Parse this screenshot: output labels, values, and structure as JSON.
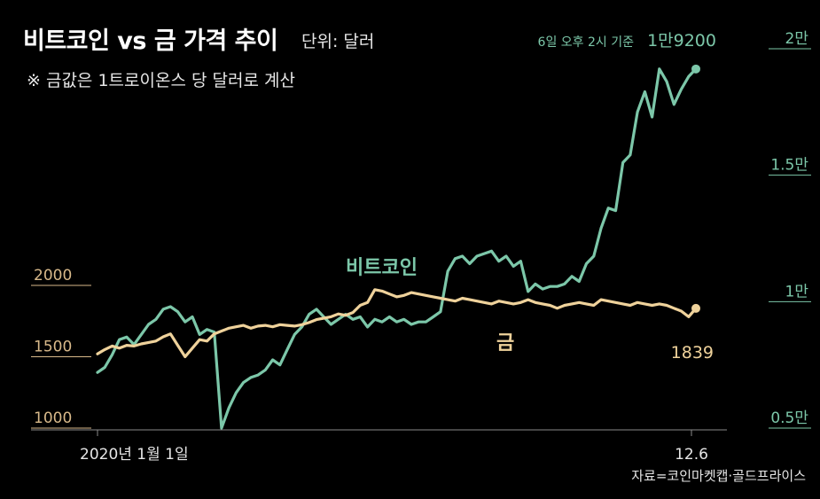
{
  "header": {
    "title": "비트코인 vs 금 가격 추이",
    "unit": "단위: 달러",
    "note": "※ 금값은 1트로이온스 당 달러로 계산"
  },
  "source": "자료=코인마켓캡·골드프라이스",
  "colors": {
    "background": "#000000",
    "bitcoin": "#7cc7a9",
    "gold": "#efd29b",
    "grid_left": "#d8b98a",
    "grid_right": "#7cc7a9",
    "axis_text": "#e6e6e6"
  },
  "chart_data": {
    "type": "line",
    "x_tick_labels": [
      "2020년 1월 1일",
      "12.6"
    ],
    "left_axis": {
      "ticks": [
        1000,
        1500,
        2000
      ],
      "tick_labels": [
        "1000",
        "1500",
        "2000"
      ],
      "ylim": [
        1000,
        2000
      ]
    },
    "right_axis": {
      "ticks": [
        5000,
        10000,
        15000,
        20000
      ],
      "tick_labels": [
        "0.5만",
        "1만",
        "1.5만",
        "2만"
      ],
      "ylim": [
        5000,
        20000
      ]
    },
    "series": [
      {
        "name": "비트코인",
        "axis": "right",
        "values": [
          7200,
          7400,
          7900,
          8500,
          8600,
          8300,
          8700,
          9100,
          9300,
          9700,
          9800,
          9600,
          9200,
          9400,
          8700,
          8900,
          8800,
          5000,
          5800,
          6400,
          6800,
          7000,
          7100,
          7300,
          7700,
          7500,
          8100,
          8700,
          9000,
          9500,
          9700,
          9400,
          9100,
          9300,
          9500,
          9300,
          9400,
          9000,
          9300,
          9200,
          9400,
          9200,
          9300,
          9100,
          9200,
          9200,
          9400,
          9600,
          11200,
          11700,
          11800,
          11500,
          11800,
          11900,
          12000,
          11600,
          11800,
          11400,
          11600,
          10400,
          10700,
          10500,
          10600,
          10600,
          10700,
          11000,
          10800,
          11500,
          11800,
          12900,
          13700,
          13600,
          15500,
          15800,
          17500,
          18300,
          17300,
          19200,
          18700,
          17800,
          18400,
          18900,
          19200
        ],
        "end_label": "1만9200",
        "end_note": "6일 오후 2시 기준"
      },
      {
        "name": "금",
        "axis": "left",
        "values": [
          1520,
          1550,
          1575,
          1560,
          1580,
          1575,
          1590,
          1600,
          1610,
          1640,
          1660,
          1580,
          1500,
          1560,
          1620,
          1610,
          1660,
          1680,
          1700,
          1710,
          1720,
          1700,
          1715,
          1720,
          1710,
          1725,
          1720,
          1715,
          1725,
          1740,
          1760,
          1770,
          1780,
          1800,
          1790,
          1810,
          1860,
          1880,
          1970,
          1960,
          1940,
          1920,
          1930,
          1950,
          1940,
          1930,
          1920,
          1910,
          1900,
          1890,
          1910,
          1900,
          1890,
          1880,
          1870,
          1890,
          1880,
          1870,
          1880,
          1900,
          1880,
          1870,
          1860,
          1840,
          1860,
          1870,
          1880,
          1870,
          1860,
          1900,
          1890,
          1880,
          1870,
          1860,
          1880,
          1870,
          1860,
          1870,
          1860,
          1840,
          1820,
          1780,
          1839
        ],
        "end_label": "1839"
      }
    ]
  }
}
